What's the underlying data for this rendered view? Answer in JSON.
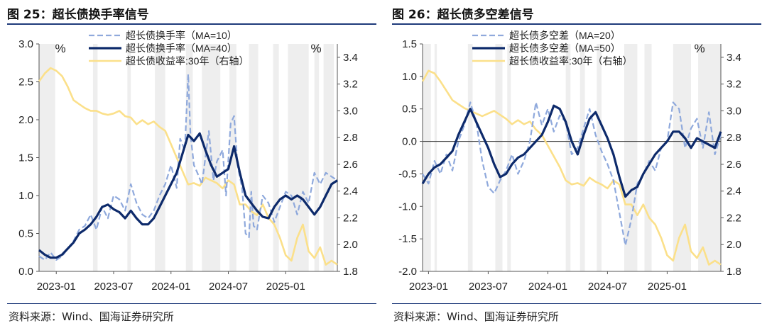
{
  "charts": [
    {
      "title": "图 25：超长债换手率信号",
      "source": "资料来源：Wind、国海证券研究所",
      "left_unit": "%",
      "right_unit": "%"
    },
    {
      "title": "图 26：超长债多空差信号",
      "source": "资料来源：Wind、国海证券研究所",
      "left_unit": "",
      "right_unit": "%"
    }
  ],
  "colors": {
    "ma_short": "#8fa9dc",
    "ma_long": "#0d2a6b",
    "yield": "#fbe08a",
    "shade": "#eeeeee",
    "rule": "#1e3a7a"
  },
  "chart_data": [
    {
      "type": "line",
      "title": "超长债换手率信号",
      "x_tick_labels": [
        "2023-01",
        "2023-07",
        "2024-01",
        "2024-07",
        "2025-01"
      ],
      "x_tick_positions": [
        2023.0,
        2023.5,
        2024.0,
        2024.5,
        2025.0
      ],
      "xlim": [
        2022.85,
        2025.45
      ],
      "ylim": [
        0,
        3
      ],
      "y_ticks": [
        0,
        0.5,
        1.0,
        1.5,
        2.0,
        2.5,
        3.0
      ],
      "y_tick_labels": [
        "0.0",
        "0.5",
        "1.0",
        "1.5",
        "2.0",
        "2.5",
        "3.0"
      ],
      "y2lim": [
        1.8,
        3.5
      ],
      "y2_ticks": [
        1.8,
        2.0,
        2.2,
        2.4,
        2.6,
        2.8,
        3.0,
        3.2,
        3.4
      ],
      "y2_tick_labels": [
        "1.8",
        "2.0",
        "2.2",
        "2.4",
        "2.6",
        "2.8",
        "3.0",
        "3.2",
        "3.4"
      ],
      "legend_position": "top-center",
      "shaded_ranges": [
        [
          2022.85,
          2022.99
        ],
        [
          2023.32,
          2023.36
        ],
        [
          2023.62,
          2023.65
        ],
        [
          2023.86,
          2023.95
        ],
        [
          2024.13,
          2024.19
        ],
        [
          2024.27,
          2024.43
        ],
        [
          2024.51,
          2024.57
        ],
        [
          2024.68,
          2024.76
        ],
        [
          2024.89,
          2024.94
        ],
        [
          2025.02,
          2025.2
        ],
        [
          2025.25,
          2025.29
        ],
        [
          2025.33,
          2025.42
        ]
      ],
      "series": [
        {
          "name": "超长债换手率（MA=10）",
          "axis": "left",
          "style": "dashed",
          "x": [
            2022.85,
            2022.9,
            2022.95,
            2023.0,
            2023.05,
            2023.1,
            2023.15,
            2023.2,
            2023.25,
            2023.3,
            2023.35,
            2023.4,
            2023.45,
            2023.5,
            2023.55,
            2023.6,
            2023.65,
            2023.7,
            2023.75,
            2023.8,
            2023.85,
            2023.9,
            2023.95,
            2024.0,
            2024.05,
            2024.08,
            2024.12,
            2024.15,
            2024.17,
            2024.2,
            2024.23,
            2024.27,
            2024.3,
            2024.33,
            2024.37,
            2024.4,
            2024.45,
            2024.48,
            2024.52,
            2024.55,
            2024.58,
            2024.62,
            2024.65,
            2024.68,
            2024.7,
            2024.72,
            2024.75,
            2024.8,
            2024.85,
            2024.9,
            2024.95,
            2025.0,
            2025.05,
            2025.1,
            2025.15,
            2025.2,
            2025.25,
            2025.3,
            2025.35,
            2025.4,
            2025.45
          ],
          "y": [
            0.2,
            0.15,
            0.25,
            0.15,
            0.2,
            0.3,
            0.4,
            0.55,
            0.6,
            0.75,
            0.55,
            0.85,
            0.7,
            1.0,
            0.95,
            0.8,
            1.15,
            0.9,
            0.75,
            0.7,
            0.8,
            1.0,
            1.15,
            1.4,
            1.1,
            1.75,
            1.6,
            2.6,
            1.8,
            1.4,
            1.3,
            1.15,
            1.5,
            1.85,
            1.2,
            1.45,
            1.6,
            1.0,
            1.95,
            2.05,
            1.4,
            1.1,
            0.5,
            0.45,
            1.05,
            0.6,
            0.55,
            1.0,
            0.9,
            0.65,
            0.85,
            1.05,
            1.0,
            0.75,
            1.05,
            0.9,
            1.3,
            1.15,
            1.3,
            1.25,
            1.2
          ]
        },
        {
          "name": "超长债换手率（MA=40）",
          "axis": "left",
          "style": "solid",
          "x": [
            2022.85,
            2022.9,
            2022.95,
            2023.0,
            2023.05,
            2023.1,
            2023.15,
            2023.2,
            2023.25,
            2023.3,
            2023.35,
            2023.4,
            2023.45,
            2023.5,
            2023.55,
            2023.6,
            2023.65,
            2023.7,
            2023.75,
            2023.8,
            2023.85,
            2023.9,
            2023.95,
            2024.0,
            2024.05,
            2024.1,
            2024.15,
            2024.2,
            2024.25,
            2024.3,
            2024.35,
            2024.4,
            2024.45,
            2024.5,
            2024.55,
            2024.6,
            2024.65,
            2024.7,
            2024.75,
            2024.8,
            2024.85,
            2024.9,
            2024.95,
            2025.0,
            2025.05,
            2025.1,
            2025.15,
            2025.2,
            2025.25,
            2025.3,
            2025.35,
            2025.4,
            2025.45
          ],
          "y": [
            0.28,
            0.22,
            0.18,
            0.18,
            0.22,
            0.3,
            0.38,
            0.5,
            0.55,
            0.62,
            0.72,
            0.85,
            0.88,
            0.82,
            0.78,
            0.7,
            0.8,
            0.7,
            0.62,
            0.62,
            0.7,
            0.85,
            1.0,
            1.15,
            1.3,
            1.55,
            1.8,
            1.72,
            1.82,
            1.6,
            1.4,
            1.25,
            1.3,
            1.35,
            1.65,
            1.3,
            1.0,
            0.9,
            0.8,
            0.72,
            0.7,
            0.85,
            0.95,
            1.0,
            0.95,
            1.0,
            0.95,
            0.85,
            0.75,
            0.85,
            1.0,
            1.15,
            1.2
          ]
        },
        {
          "name": "超长债收益率:30年（右轴）",
          "axis": "right",
          "style": "solid",
          "x": [
            2022.85,
            2022.9,
            2022.95,
            2023.0,
            2023.05,
            2023.1,
            2023.15,
            2023.2,
            2023.25,
            2023.3,
            2023.35,
            2023.4,
            2023.45,
            2023.5,
            2023.55,
            2023.6,
            2023.65,
            2023.7,
            2023.75,
            2023.8,
            2023.85,
            2023.9,
            2023.95,
            2024.0,
            2024.05,
            2024.1,
            2024.15,
            2024.2,
            2024.25,
            2024.3,
            2024.35,
            2024.4,
            2024.45,
            2024.5,
            2024.55,
            2024.6,
            2024.65,
            2024.7,
            2024.75,
            2024.8,
            2024.85,
            2024.9,
            2024.95,
            2025.0,
            2025.05,
            2025.1,
            2025.15,
            2025.2,
            2025.25,
            2025.3,
            2025.35,
            2025.4,
            2025.45
          ],
          "y": [
            3.22,
            3.28,
            3.32,
            3.3,
            3.26,
            3.18,
            3.08,
            3.05,
            3.02,
            3.0,
            3.0,
            2.98,
            2.97,
            2.98,
            3.0,
            2.96,
            2.95,
            2.9,
            2.93,
            2.9,
            2.92,
            2.88,
            2.85,
            2.75,
            2.65,
            2.55,
            2.45,
            2.46,
            2.44,
            2.5,
            2.48,
            2.46,
            2.42,
            2.48,
            2.45,
            2.3,
            2.3,
            2.25,
            2.22,
            2.3,
            2.2,
            2.15,
            2.05,
            1.92,
            1.88,
            2.05,
            2.15,
            1.95,
            1.9,
            1.98,
            1.85,
            1.88,
            1.85
          ]
        }
      ]
    },
    {
      "type": "line",
      "title": "超长债多空差信号",
      "x_tick_labels": [
        "2023-01",
        "2023-07",
        "2024-01",
        "2024-07",
        "2025-01"
      ],
      "x_tick_positions": [
        2023.0,
        2023.5,
        2024.0,
        2024.5,
        2025.0
      ],
      "xlim": [
        2022.95,
        2025.45
      ],
      "ylim": [
        -2.0,
        1.5
      ],
      "y_ticks": [
        -2.0,
        -1.5,
        -1.0,
        -0.5,
        0.0,
        0.5,
        1.0,
        1.5
      ],
      "y_tick_labels": [
        "-2.0",
        "-1.5",
        "-1.0",
        "-0.5",
        "0.0",
        "0.5",
        "1.0",
        "1.5"
      ],
      "y2lim": [
        1.8,
        3.5
      ],
      "y2_ticks": [
        1.8,
        2.0,
        2.2,
        2.4,
        2.6,
        2.8,
        3.0,
        3.2,
        3.4
      ],
      "y2_tick_labels": [
        "1.8",
        "2.0",
        "2.2",
        "2.4",
        "2.6",
        "2.8",
        "3.0",
        "3.2",
        "3.4"
      ],
      "legend_position": "top-center",
      "shaded_ranges": [
        [
          2022.95,
          2023.02
        ],
        [
          2023.05,
          2023.07
        ],
        [
          2023.33,
          2023.37
        ],
        [
          2023.56,
          2023.62
        ],
        [
          2023.66,
          2023.69
        ],
        [
          2024.15,
          2024.19
        ],
        [
          2024.27,
          2024.31
        ],
        [
          2024.41,
          2024.45
        ],
        [
          2024.64,
          2024.75
        ],
        [
          2024.81,
          2024.87
        ],
        [
          2025.05,
          2025.2
        ],
        [
          2025.26,
          2025.45
        ]
      ],
      "series": [
        {
          "name": "超长债多空差（MA=20）",
          "axis": "left",
          "style": "dashed",
          "x": [
            2022.95,
            2023.0,
            2023.05,
            2023.1,
            2023.15,
            2023.2,
            2023.25,
            2023.3,
            2023.35,
            2023.4,
            2023.45,
            2023.5,
            2023.55,
            2023.6,
            2023.65,
            2023.7,
            2023.75,
            2023.8,
            2023.85,
            2023.9,
            2023.95,
            2024.0,
            2024.05,
            2024.1,
            2024.15,
            2024.2,
            2024.25,
            2024.3,
            2024.35,
            2024.4,
            2024.45,
            2024.5,
            2024.55,
            2024.6,
            2024.65,
            2024.7,
            2024.75,
            2024.8,
            2024.85,
            2024.9,
            2024.95,
            2025.0,
            2025.05,
            2025.1,
            2025.15,
            2025.2,
            2025.25,
            2025.3,
            2025.35,
            2025.4,
            2025.45
          ],
          "y": [
            -0.5,
            -0.65,
            -0.3,
            -0.5,
            -0.2,
            -0.45,
            0.0,
            0.25,
            0.6,
            0.3,
            -0.3,
            -0.7,
            -0.8,
            -0.6,
            -0.45,
            -0.2,
            -0.5,
            -0.3,
            0.0,
            0.6,
            0.25,
            0.5,
            0.15,
            0.4,
            0.3,
            -0.2,
            -0.1,
            0.2,
            0.5,
            0.1,
            -0.15,
            -0.35,
            -0.6,
            -1.1,
            -1.6,
            -1.2,
            -0.65,
            -0.5,
            -0.3,
            -0.45,
            -0.1,
            0.0,
            0.6,
            0.5,
            -0.1,
            0.2,
            0.35,
            -0.1,
            0.45,
            -0.2,
            0.1
          ]
        },
        {
          "name": "超长债多空差（MA=50）",
          "axis": "left",
          "style": "solid",
          "x": [
            2022.95,
            2023.0,
            2023.05,
            2023.1,
            2023.15,
            2023.2,
            2023.25,
            2023.3,
            2023.35,
            2023.4,
            2023.45,
            2023.5,
            2023.55,
            2023.6,
            2023.65,
            2023.7,
            2023.75,
            2023.8,
            2023.85,
            2023.9,
            2023.95,
            2024.0,
            2024.05,
            2024.1,
            2024.15,
            2024.2,
            2024.25,
            2024.3,
            2024.35,
            2024.4,
            2024.45,
            2024.5,
            2024.55,
            2024.6,
            2024.65,
            2024.7,
            2024.75,
            2024.8,
            2024.85,
            2024.9,
            2024.95,
            2025.0,
            2025.05,
            2025.1,
            2025.15,
            2025.2,
            2025.25,
            2025.3,
            2025.35,
            2025.4,
            2025.45
          ],
          "y": [
            -0.65,
            -0.5,
            -0.4,
            -0.35,
            -0.25,
            -0.15,
            0.1,
            0.3,
            0.5,
            0.3,
            0.1,
            -0.1,
            -0.35,
            -0.55,
            -0.5,
            -0.35,
            -0.25,
            -0.2,
            -0.1,
            0.0,
            0.1,
            0.3,
            0.55,
            0.5,
            0.3,
            0.0,
            -0.2,
            0.1,
            0.35,
            0.45,
            0.25,
            0.05,
            -0.2,
            -0.55,
            -0.85,
            -0.75,
            -0.7,
            -0.5,
            -0.35,
            -0.2,
            -0.1,
            0.0,
            0.15,
            0.15,
            0.05,
            -0.1,
            0.05,
            0.0,
            -0.05,
            -0.1,
            0.15
          ]
        },
        {
          "name": "超长债收益率:30年（右轴）",
          "axis": "right",
          "style": "solid",
          "x": [
            2022.95,
            2023.0,
            2023.05,
            2023.1,
            2023.15,
            2023.2,
            2023.25,
            2023.3,
            2023.35,
            2023.4,
            2023.45,
            2023.5,
            2023.55,
            2023.6,
            2023.65,
            2023.7,
            2023.75,
            2023.8,
            2023.85,
            2023.9,
            2023.95,
            2024.0,
            2024.05,
            2024.1,
            2024.15,
            2024.2,
            2024.25,
            2024.3,
            2024.35,
            2024.4,
            2024.45,
            2024.5,
            2024.55,
            2024.6,
            2024.65,
            2024.7,
            2024.75,
            2024.8,
            2024.85,
            2024.9,
            2024.95,
            2025.0,
            2025.05,
            2025.1,
            2025.15,
            2025.2,
            2025.25,
            2025.3,
            2025.35,
            2025.4,
            2025.45
          ],
          "y": [
            3.22,
            3.3,
            3.28,
            3.22,
            3.15,
            3.08,
            3.05,
            3.02,
            3.0,
            2.98,
            2.96,
            2.98,
            3.0,
            2.97,
            2.94,
            2.9,
            2.93,
            2.9,
            2.92,
            2.86,
            2.82,
            2.74,
            2.66,
            2.58,
            2.48,
            2.45,
            2.46,
            2.44,
            2.5,
            2.47,
            2.45,
            2.42,
            2.48,
            2.45,
            2.3,
            2.3,
            2.22,
            2.3,
            2.2,
            2.15,
            2.05,
            1.92,
            1.88,
            2.05,
            2.15,
            1.95,
            1.9,
            1.98,
            1.85,
            1.88,
            1.85
          ]
        }
      ]
    }
  ]
}
